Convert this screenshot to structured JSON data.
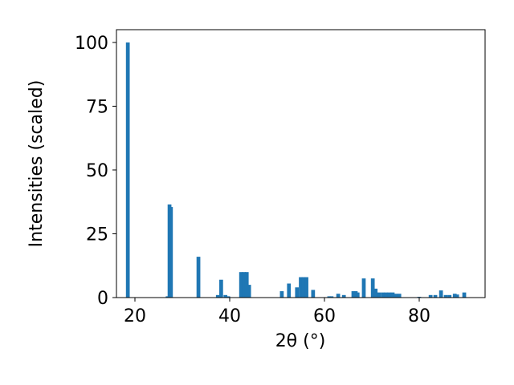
{
  "chart_data": {
    "type": "bar",
    "color": "#1f77b4",
    "xlabel": "2θ (°)",
    "ylabel": "Intensities (scaled)",
    "x": [
      18.5,
      26.9,
      27.3,
      27.6,
      33.4,
      37.5,
      38.2,
      39.1,
      39.7,
      42.4,
      43.0,
      43.6,
      44.1,
      51.0,
      52.5,
      54.2,
      55.0,
      55.6,
      56.2,
      57.6,
      61.0,
      61.5,
      62.9,
      64.1,
      66.1,
      66.6,
      67.0,
      68.3,
      70.2,
      70.8,
      71.5,
      72.3,
      73.0,
      73.7,
      74.4,
      75.1,
      75.8,
      80.0,
      82.4,
      83.4,
      84.6,
      85.6,
      86.4,
      87.5,
      88.0,
      89.5
    ],
    "values": [
      100,
      0.5,
      36.5,
      35.5,
      16,
      1,
      7,
      1,
      0.5,
      10,
      10,
      10,
      5,
      2.5,
      5.5,
      4,
      8,
      8,
      8,
      3,
      0.5,
      0.5,
      1.5,
      1,
      2.5,
      2.5,
      2,
      7.5,
      7.5,
      3.5,
      2,
      2,
      2,
      2,
      2,
      1.5,
      1.5,
      0.3,
      1,
      1,
      2.8,
      1,
      1,
      1.5,
      1.2,
      2
    ],
    "xlim": [
      16.1,
      93.9
    ],
    "ylim": [
      0,
      105
    ],
    "xticks": [
      20,
      40,
      60,
      80
    ],
    "yticks": [
      0,
      25,
      50,
      75,
      100
    ]
  }
}
